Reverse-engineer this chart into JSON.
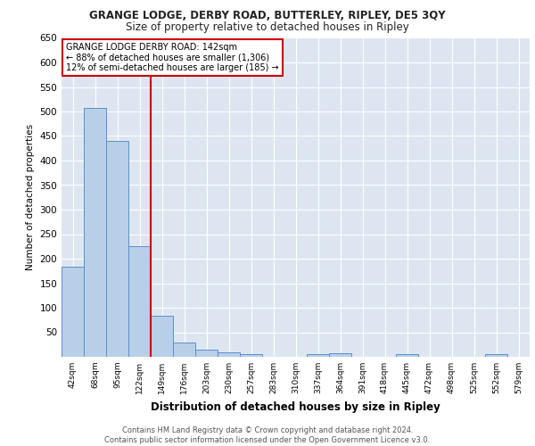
{
  "title1": "GRANGE LODGE, DERBY ROAD, BUTTERLEY, RIPLEY, DE5 3QY",
  "title2": "Size of property relative to detached houses in Ripley",
  "xlabel": "Distribution of detached houses by size in Ripley",
  "ylabel": "Number of detached properties",
  "categories": [
    "42sqm",
    "68sqm",
    "95sqm",
    "122sqm",
    "149sqm",
    "176sqm",
    "203sqm",
    "230sqm",
    "257sqm",
    "283sqm",
    "310sqm",
    "337sqm",
    "364sqm",
    "391sqm",
    "418sqm",
    "445sqm",
    "472sqm",
    "498sqm",
    "525sqm",
    "552sqm",
    "579sqm"
  ],
  "values": [
    183,
    508,
    440,
    226,
    84,
    29,
    15,
    9,
    5,
    0,
    0,
    6,
    8,
    0,
    0,
    5,
    0,
    0,
    0,
    5,
    0
  ],
  "bar_color": "#b8cfe8",
  "bar_edge_color": "#5b8fc9",
  "bg_color": "#dde6f0",
  "grid_color": "#ffffff",
  "vline_x": 3.5,
  "vline_color": "#cc0000",
  "annotation_text": "GRANGE LODGE DERBY ROAD: 142sqm\n← 88% of detached houses are smaller (1,306)\n12% of semi-detached houses are larger (185) →",
  "annotation_box_color": "#ffffff",
  "annotation_box_edge_color": "#cc0000",
  "footer_text": "Contains HM Land Registry data © Crown copyright and database right 2024.\nContains public sector information licensed under the Open Government Licence v3.0.",
  "ylim": [
    0,
    650
  ],
  "yticks": [
    0,
    50,
    100,
    150,
    200,
    250,
    300,
    350,
    400,
    450,
    500,
    550,
    600,
    650
  ]
}
